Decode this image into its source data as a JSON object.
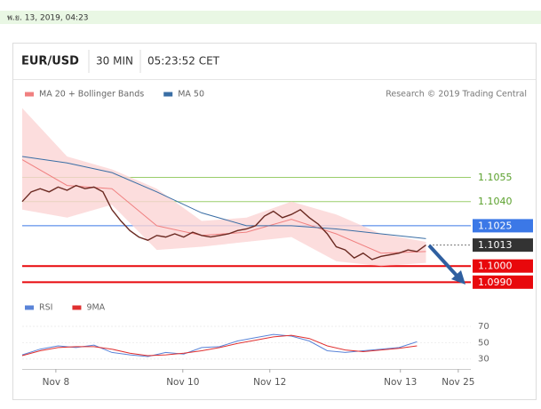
{
  "timestamp": "พ.ย. 13, 2019, 04:23",
  "chart_data": [
    {
      "type": "line",
      "title": "EUR/USD",
      "interval": "30 MIN",
      "time": "05:23:52 CET",
      "credit": "Research © 2019 Trading Central",
      "xlim": [
        0,
        100
      ],
      "xticks": [
        {
          "value": 7.5,
          "label": "Nov 8"
        },
        {
          "value": 35.8,
          "label": "Nov 10"
        },
        {
          "value": 55.2,
          "label": "Nov 12"
        },
        {
          "value": 84.3,
          "label": "Nov 13"
        },
        {
          "value": 97.2,
          "label": "Nov 25"
        }
      ],
      "ylim": [
        1.0983,
        1.11
      ],
      "series": [
        {
          "name": "MA 20 + Bollinger Bands",
          "color": "#f08080",
          "x": [
            0,
            10,
            20,
            30,
            40,
            50,
            60,
            70,
            80,
            90
          ],
          "values": [
            1.1066,
            1.105,
            1.1048,
            1.1025,
            1.1019,
            1.1021,
            1.1029,
            1.102,
            1.1008,
            1.1009
          ],
          "upper": [
            1.1098,
            1.1068,
            1.106,
            1.1048,
            1.1028,
            1.103,
            1.104,
            1.1032,
            1.102,
            1.1015
          ],
          "lower": [
            1.1035,
            1.103,
            1.1038,
            1.101,
            1.1012,
            1.1015,
            1.1018,
            1.1003,
            1.1,
            1.1002
          ]
        },
        {
          "name": "MA 50",
          "color": "#3a6ea5",
          "x": [
            0,
            10,
            20,
            30,
            40,
            50,
            60,
            70,
            80,
            90
          ],
          "values": [
            1.1068,
            1.1064,
            1.1058,
            1.1046,
            1.1033,
            1.1025,
            1.1025,
            1.1023,
            1.102,
            1.1017
          ]
        },
        {
          "color": "#6b2a22",
          "x": [
            0,
            2,
            4,
            6,
            8,
            10,
            12,
            14,
            16,
            18,
            20,
            22,
            24,
            26,
            28,
            30,
            32,
            34,
            36,
            38,
            40,
            42,
            44,
            46,
            48,
            50,
            52,
            54,
            56,
            58,
            60,
            62,
            64,
            66,
            68,
            70,
            72,
            74,
            76,
            78,
            80,
            82,
            84,
            86,
            88,
            90
          ],
          "values": [
            1.104,
            1.1046,
            1.1048,
            1.1046,
            1.1049,
            1.1047,
            1.105,
            1.1048,
            1.1049,
            1.1046,
            1.1035,
            1.1028,
            1.1022,
            1.1018,
            1.1016,
            1.1019,
            1.1018,
            1.102,
            1.1018,
            1.1021,
            1.1019,
            1.1018,
            1.1019,
            1.102,
            1.1022,
            1.1023,
            1.1025,
            1.1031,
            1.1034,
            1.103,
            1.1032,
            1.1035,
            1.103,
            1.1026,
            1.102,
            1.1012,
            1.101,
            1.1005,
            1.1008,
            1.1004,
            1.1006,
            1.1007,
            1.1008,
            1.101,
            1.1009,
            1.1013
          ]
        }
      ],
      "levels": [
        {
          "value": 1.1055,
          "label": "1.1055",
          "color": "#9acd6a",
          "box": false
        },
        {
          "value": 1.104,
          "label": "1.1040",
          "color": "#9acd6a",
          "box": false
        },
        {
          "value": 1.1025,
          "label": "1.1025",
          "color": "#3b78e7",
          "box": true
        },
        {
          "value": 1.1013,
          "label": "1.1013",
          "color": "#333333",
          "box": true,
          "dash": true
        },
        {
          "value": 1.1,
          "label": "1.1000",
          "color": "#e8080c",
          "box": true
        },
        {
          "value": 1.099,
          "label": "1.0990",
          "color": "#e8080c",
          "box": true
        }
      ]
    },
    {
      "type": "line",
      "xlim": [
        0,
        100
      ],
      "ylim": [
        21,
        83
      ],
      "yticks": [
        30,
        50,
        70
      ],
      "series": [
        {
          "name": "RSI",
          "color": "#5a84d8",
          "x": [
            0,
            4,
            8,
            12,
            16,
            20,
            24,
            28,
            32,
            36,
            40,
            44,
            48,
            52,
            56,
            60,
            64,
            68,
            72,
            76,
            80,
            84,
            88
          ],
          "values": [
            35,
            42,
            46,
            44,
            47,
            38,
            35,
            33,
            38,
            36,
            44,
            45,
            52,
            56,
            60,
            58,
            52,
            40,
            38,
            40,
            42,
            44,
            51
          ]
        },
        {
          "name": "9MA",
          "color": "#e03030",
          "x": [
            0,
            4,
            8,
            12,
            16,
            20,
            24,
            28,
            32,
            36,
            40,
            44,
            48,
            52,
            56,
            60,
            64,
            68,
            72,
            76,
            80,
            84,
            88
          ],
          "values": [
            34,
            40,
            44,
            45,
            45,
            42,
            37,
            34,
            35,
            37,
            40,
            44,
            49,
            53,
            57,
            59,
            55,
            46,
            41,
            39,
            41,
            43,
            46
          ]
        }
      ]
    }
  ]
}
